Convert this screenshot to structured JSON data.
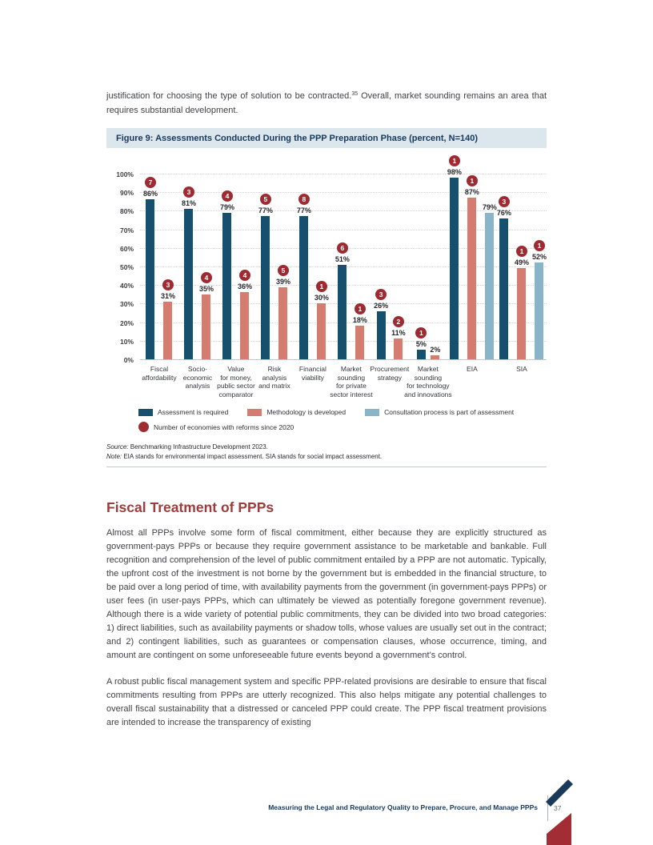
{
  "intro": {
    "before_sup": "justification for choosing the type of solution to be contracted.",
    "sup": "35",
    "after_sup": " Overall, market sounding remains an area that requires substantial development."
  },
  "figure": {
    "title": "Figure 9: Assessments Conducted During the PPP Preparation Phase (percent, N=140)",
    "source_label": "Source:",
    "source_text": " Benchmarking Infrastructure Development 2023.",
    "note_label": "Note:",
    "note_text": " EIA stands for environmental impact assessment. SIA stands for social impact assessment."
  },
  "chart_data": {
    "type": "bar",
    "title": "Figure 9: Assessments Conducted During the PPP Preparation Phase (percent, N=140)",
    "xlabel": "",
    "ylabel": "",
    "ylim": [
      0,
      100
    ],
    "grid": "dotted horizontal",
    "legend_position": "bottom",
    "y_ticks": [
      "0%",
      "10%",
      "20%",
      "30%",
      "40%",
      "50%",
      "60%",
      "70%",
      "80%",
      "90%",
      "100%"
    ],
    "categories": [
      "Fiscal affordability",
      "Socio-economic analysis",
      "Value for money, public sector comparator",
      "Risk analysis and matrix",
      "Financial viability",
      "Market sounding for private sector interest",
      "Procurement strategy",
      "Market sounding for technology and innovations",
      "EIA",
      "SIA"
    ],
    "category_label_lines": [
      [
        "Fiscal",
        "affordability"
      ],
      [
        "Socio-",
        "economic",
        "analysis"
      ],
      [
        "Value",
        "for money,",
        "public sector",
        "comparator"
      ],
      [
        "Risk",
        "analysis",
        "and matrix"
      ],
      [
        "Financial",
        "viability"
      ],
      [
        "Market",
        "sounding",
        "for private",
        "sector interest"
      ],
      [
        "Procurement",
        "strategy"
      ],
      [
        "Market",
        "sounding",
        "for technology",
        "and innovations"
      ],
      [
        "EIA"
      ],
      [
        "SIA"
      ]
    ],
    "series": [
      {
        "name": "Assessment is required",
        "values": [
          86,
          81,
          79,
          77,
          77,
          51,
          26,
          5,
          98,
          76
        ]
      },
      {
        "name": "Methodology is developed",
        "values": [
          31,
          35,
          36,
          39,
          30,
          18,
          11,
          2,
          87,
          49
        ]
      },
      {
        "name": "Consultation process is part of assessment",
        "values": [
          null,
          null,
          null,
          null,
          null,
          null,
          null,
          null,
          79,
          52
        ]
      }
    ],
    "badges_label": "Number of economies with reforms since 2020",
    "badges": [
      [
        7,
        3,
        4,
        5,
        8,
        6,
        3,
        1,
        1,
        3
      ],
      [
        3,
        4,
        4,
        5,
        1,
        1,
        2,
        null,
        1,
        1
      ],
      [
        null,
        null,
        null,
        null,
        null,
        null,
        null,
        null,
        null,
        1
      ]
    ],
    "legend_entries": [
      {
        "label": "Assessment is required",
        "color": "#15506f",
        "shape": "rect"
      },
      {
        "label": "Methodology is developed",
        "color": "#d47c70",
        "shape": "rect"
      },
      {
        "label": "Consultation process is part of assessment",
        "color": "#8ab5c8",
        "shape": "rect"
      },
      {
        "label": "Number of economies with reforms since 2020",
        "color": "#9e2b31",
        "shape": "circle"
      }
    ]
  },
  "section": {
    "heading": "Fiscal Treatment of PPPs",
    "paragraph1": "Almost all PPPs involve some form of fiscal commitment, either because they are explicitly structured as government-pays PPPs or because they require government assistance to be marketable and bankable. Full recognition and comprehension of the level of public commitment entailed by a PPP are not automatic. Typically, the upfront cost of the investment is not borne by the government but is embedded in the financial structure, to be paid over a long period of time, with availability payments from the government (in government-pays PPPs) or user fees (in user-pays PPPs, which can ultimately be viewed as potentially foregone government revenue). Although there is a wide variety of potential public commitments, they can be divided into two broad categories: 1) direct liabilities, such as availability payments or shadow tolls, whose values are usually set out in the contract; and 2) contingent liabilities, such as guarantees or compensation clauses, whose occurrence, timing, and amount are contingent on some unforeseeable future events beyond a government's control.",
    "paragraph2": "A robust public fiscal management system and specific PPP-related provisions are desirable to ensure that fiscal commitments resulting from PPPs are utterly recognized. This also helps mitigate any potential challenges to overall fiscal sustainability that a distressed or canceled PPP could create. The PPP fiscal treatment provisions are intended to increase the transparency of existing"
  },
  "footer": {
    "title": "Measuring the Legal and Regulatory Quality to Prepare, Procure, and Manage PPPs",
    "page_number": "37"
  },
  "colors": {
    "bar_navy": "#15506f",
    "bar_salmon": "#d47c70",
    "bar_lightblue": "#8ab5c8",
    "badge_red": "#9e2b31",
    "heading_red": "#a03b3b",
    "figure_title_bg": "#dbe7ed",
    "figure_title_text": "#16395c",
    "footer_navy": "#16395c",
    "corner_navy": "#1a3a5c",
    "corner_red": "#a22d35"
  }
}
